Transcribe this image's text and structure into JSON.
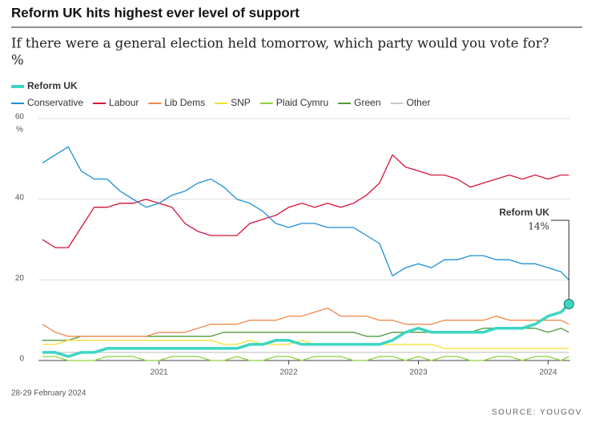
{
  "chart_data": {
    "type": "line",
    "title": "Reform UK hits highest ever level of support",
    "subtitle": "If there were a general election held tomorrow, which party would you vote for?",
    "subtitle_unit": "%",
    "y_unit": "%",
    "footnote": "28-29 February 2024",
    "source": "SOURCE: YOUGOV",
    "x": [
      2020.1,
      2020.2,
      2020.3,
      2020.4,
      2020.5,
      2020.6,
      2020.7,
      2020.8,
      2020.9,
      2021.0,
      2021.1,
      2021.2,
      2021.3,
      2021.4,
      2021.5,
      2021.6,
      2021.7,
      2021.8,
      2021.9,
      2022.0,
      2022.1,
      2022.2,
      2022.3,
      2022.4,
      2022.5,
      2022.6,
      2022.7,
      2022.8,
      2022.9,
      2023.0,
      2023.1,
      2023.2,
      2023.3,
      2023.4,
      2023.5,
      2023.6,
      2023.7,
      2023.8,
      2023.9,
      2024.0,
      2024.1,
      2024.16
    ],
    "xlim": [
      2020.07,
      2024.17
    ],
    "xticks": [
      2021,
      2022,
      2023,
      2024
    ],
    "ylim": [
      0,
      60
    ],
    "yticks": [
      0,
      20,
      40,
      60
    ],
    "grid": true,
    "legend": "top-left",
    "series": [
      {
        "name": "Reform UK",
        "color": "#3dd6c3",
        "values": [
          2,
          2,
          1,
          2,
          2,
          3,
          3,
          3,
          3,
          3,
          3,
          3,
          3,
          3,
          3,
          3,
          4,
          4,
          5,
          5,
          4,
          4,
          4,
          4,
          4,
          4,
          4,
          5,
          7,
          8,
          7,
          7,
          7,
          7,
          7,
          8,
          8,
          8,
          9,
          11,
          12,
          14
        ],
        "value_labels": [
          null,
          null,
          null,
          null,
          null,
          null,
          null,
          null,
          null,
          null,
          null,
          null,
          null,
          null,
          null,
          null,
          null,
          null,
          null,
          null,
          null,
          null,
          null,
          null,
          null,
          null,
          null,
          null,
          null,
          null,
          null,
          null,
          null,
          null,
          null,
          null,
          null,
          null,
          null,
          null,
          null,
          "14%"
        ]
      },
      {
        "name": "Conservative",
        "color": "#1c8fd6",
        "values": [
          49,
          51,
          53,
          47,
          45,
          45,
          42,
          40,
          38,
          39,
          41,
          42,
          44,
          45,
          43,
          40,
          39,
          37,
          34,
          33,
          34,
          34,
          33,
          33,
          33,
          31,
          29,
          21,
          23,
          24,
          23,
          25,
          25,
          26,
          26,
          25,
          25,
          24,
          24,
          23,
          22,
          20
        ]
      },
      {
        "name": "Labour",
        "color": "#d4143a",
        "values": [
          30,
          28,
          28,
          33,
          38,
          38,
          39,
          39,
          40,
          39,
          38,
          34,
          32,
          31,
          31,
          31,
          34,
          35,
          36,
          38,
          39,
          38,
          39,
          38,
          39,
          41,
          44,
          51,
          48,
          47,
          46,
          46,
          45,
          43,
          44,
          45,
          46,
          45,
          46,
          45,
          46,
          46
        ]
      },
      {
        "name": "Lib Dems",
        "color": "#f08a4b",
        "values": [
          9,
          7,
          6,
          6,
          6,
          6,
          6,
          6,
          6,
          7,
          7,
          7,
          8,
          9,
          9,
          9,
          10,
          10,
          10,
          11,
          11,
          12,
          13,
          11,
          11,
          11,
          10,
          10,
          9,
          9,
          9,
          10,
          10,
          10,
          10,
          11,
          10,
          10,
          10,
          10,
          10,
          9
        ]
      },
      {
        "name": "SNP",
        "color": "#f2e22e",
        "values": [
          4,
          4,
          5,
          5,
          5,
          5,
          5,
          5,
          5,
          5,
          5,
          5,
          5,
          5,
          4,
          4,
          5,
          4,
          4,
          4,
          5,
          4,
          4,
          4,
          4,
          4,
          4,
          4,
          4,
          4,
          4,
          3,
          3,
          3,
          3,
          3,
          3,
          3,
          3,
          3,
          3,
          3
        ]
      },
      {
        "name": "Plaid Cymru",
        "color": "#8cd43a",
        "values": [
          1,
          1,
          0,
          0,
          0,
          1,
          1,
          1,
          0,
          0,
          1,
          1,
          1,
          0,
          0,
          1,
          0,
          0,
          1,
          1,
          0,
          1,
          1,
          1,
          0,
          0,
          1,
          1,
          0,
          1,
          0,
          1,
          1,
          0,
          0,
          1,
          1,
          0,
          1,
          1,
          0,
          1
        ]
      },
      {
        "name": "Green",
        "color": "#4f9a3a",
        "values": [
          5,
          5,
          5,
          6,
          6,
          6,
          6,
          6,
          6,
          6,
          6,
          6,
          6,
          6,
          7,
          7,
          7,
          7,
          7,
          7,
          7,
          7,
          7,
          7,
          7,
          6,
          6,
          7,
          7,
          7,
          7,
          7,
          7,
          7,
          8,
          8,
          8,
          8,
          8,
          7,
          8,
          7
        ]
      },
      {
        "name": "Other",
        "color": "#c8c8c8",
        "values": [
          2,
          2,
          2,
          2,
          2,
          2,
          2,
          2,
          2,
          2,
          2,
          2,
          2,
          2,
          2,
          2,
          2,
          2,
          2,
          2,
          2,
          2,
          2,
          2,
          2,
          2,
          2,
          2,
          2,
          2,
          2,
          2,
          2,
          2,
          2,
          2,
          2,
          2,
          2,
          2,
          2,
          2
        ]
      }
    ]
  }
}
